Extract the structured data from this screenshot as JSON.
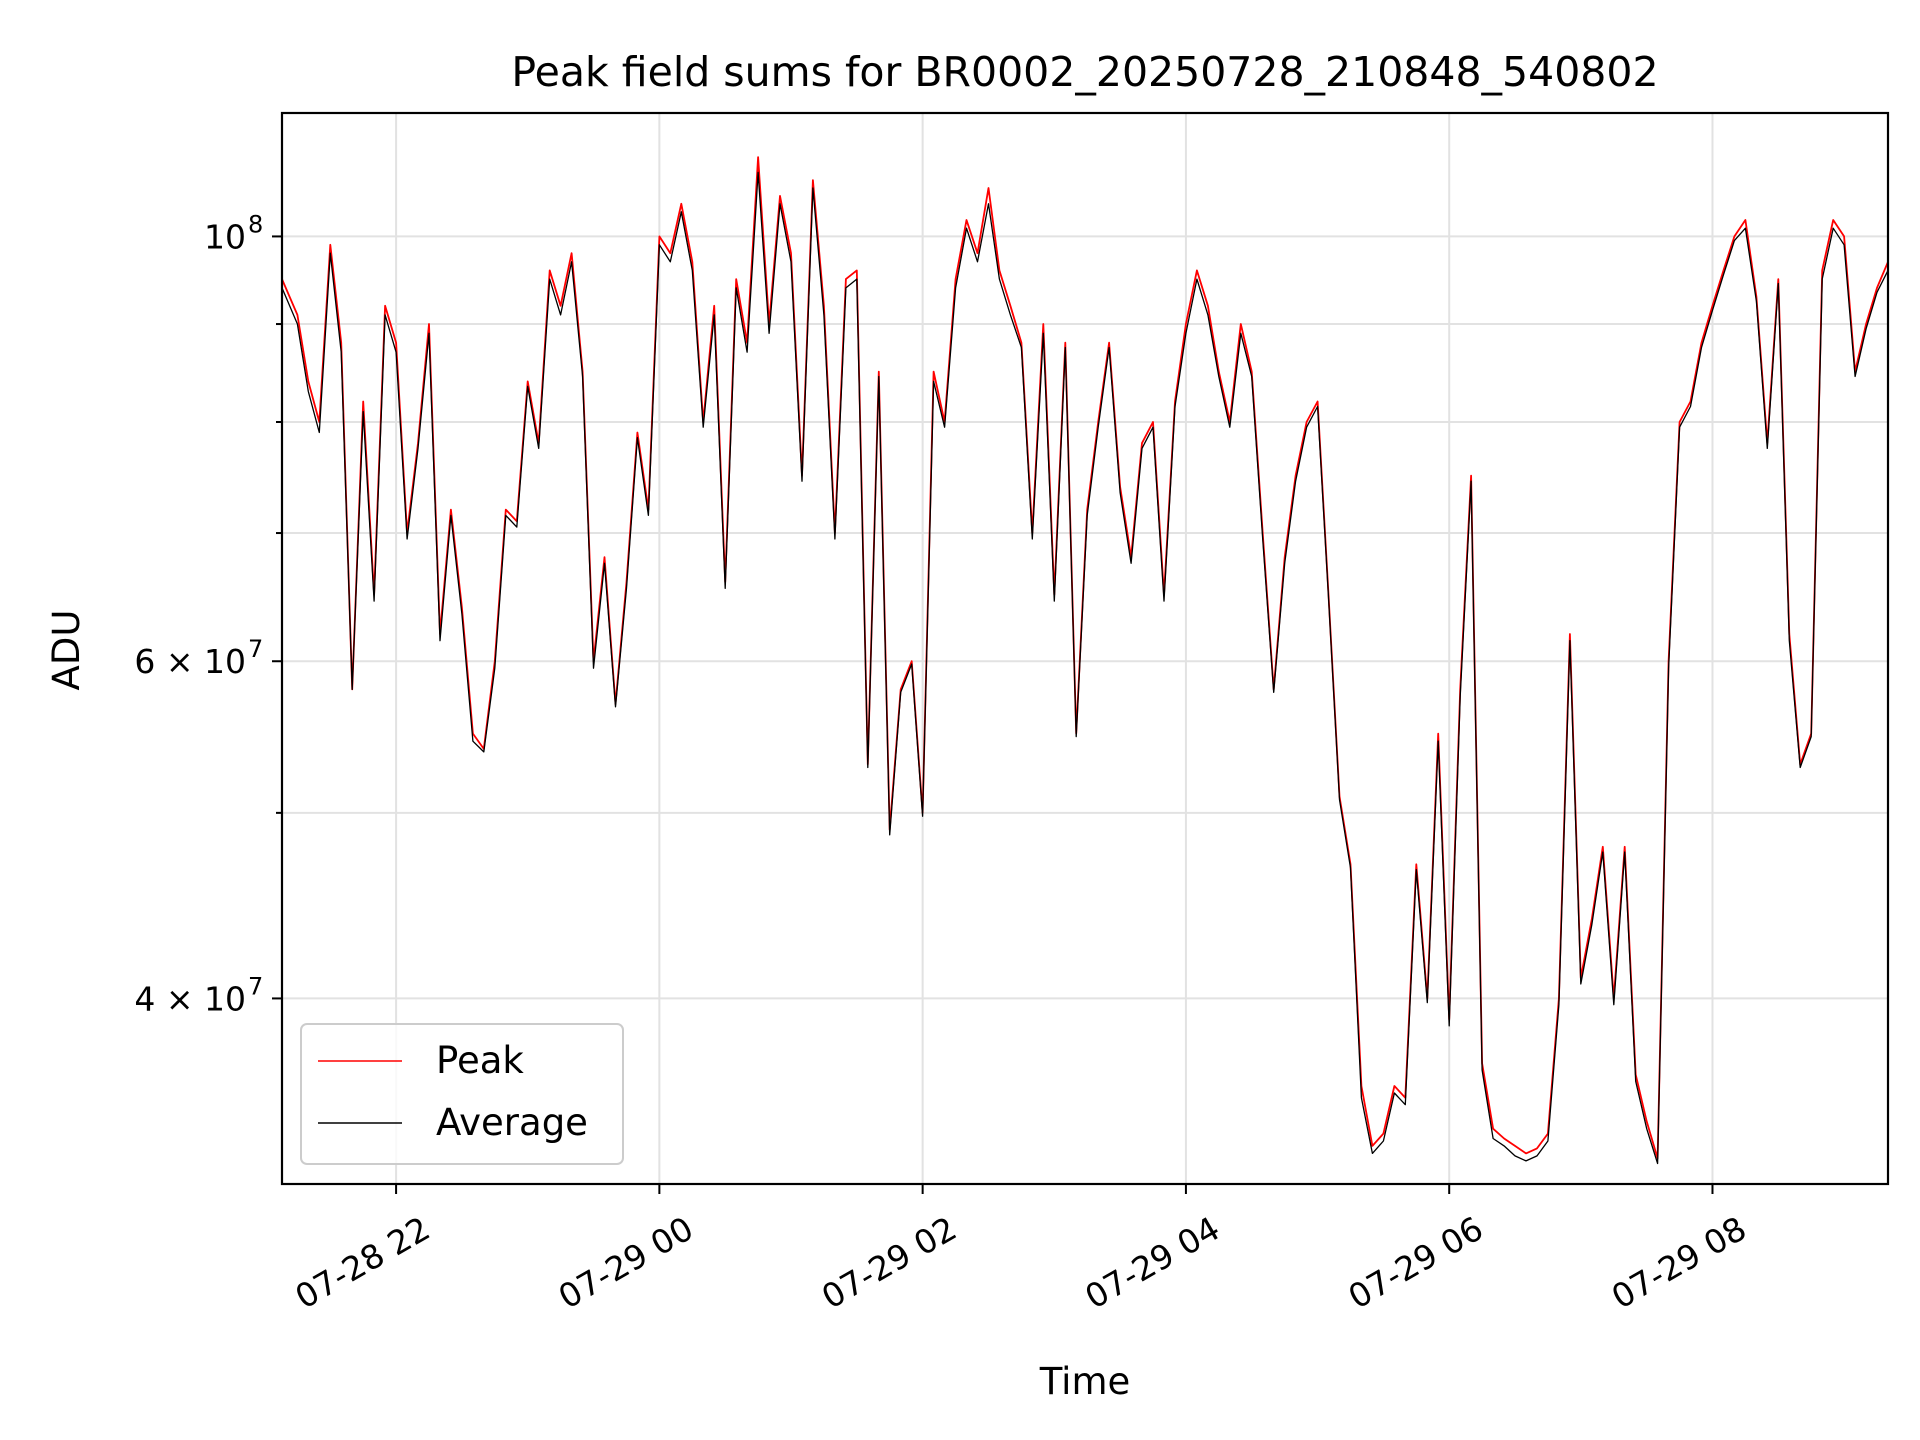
{
  "chart_data": {
    "type": "line",
    "title": "Peak field sums for BR0002_20250728_210848_540802",
    "xlabel": "Time",
    "ylabel": "ADU",
    "x_range": [
      "2025-07-28 21:08",
      "2025-07-29 09:20"
    ],
    "y_scale": "log",
    "ylim": [
      32000000,
      116000000
    ],
    "grid": true,
    "legend_position": "lower-left",
    "x_ticks": [
      {
        "value": "2025-07-28 22:00",
        "label": "07-28 22"
      },
      {
        "value": "2025-07-29 00:00",
        "label": "07-29 00"
      },
      {
        "value": "2025-07-29 02:00",
        "label": "07-29 02"
      },
      {
        "value": "2025-07-29 04:00",
        "label": "07-29 04"
      },
      {
        "value": "2025-07-29 06:00",
        "label": "07-29 06"
      },
      {
        "value": "2025-07-29 08:00",
        "label": "07-29 08"
      }
    ],
    "y_ticks_major": [
      {
        "value": 40000000,
        "label": "4 × 10",
        "exp": "7"
      },
      {
        "value": 60000000,
        "label": "6 × 10",
        "exp": "7"
      },
      {
        "value": 100000000,
        "label": "10",
        "exp": "8"
      }
    ],
    "y_ticks_minor": [
      50000000,
      70000000,
      80000000,
      90000000
    ],
    "series": [
      {
        "name": "Peak",
        "color": "#ff0000",
        "x": [
          "2025-07-28 21:08",
          "2025-07-28 21:15",
          "2025-07-28 21:20",
          "2025-07-28 21:25",
          "2025-07-28 21:30",
          "2025-07-28 21:35",
          "2025-07-28 21:40",
          "2025-07-28 21:45",
          "2025-07-28 21:50",
          "2025-07-28 21:55",
          "2025-07-28 22:00",
          "2025-07-28 22:05",
          "2025-07-28 22:10",
          "2025-07-28 22:15",
          "2025-07-28 22:20",
          "2025-07-28 22:25",
          "2025-07-28 22:30",
          "2025-07-28 22:35",
          "2025-07-28 22:40",
          "2025-07-28 22:45",
          "2025-07-28 22:50",
          "2025-07-28 22:55",
          "2025-07-28 23:00",
          "2025-07-28 23:05",
          "2025-07-28 23:10",
          "2025-07-28 23:15",
          "2025-07-28 23:20",
          "2025-07-28 23:25",
          "2025-07-28 23:30",
          "2025-07-28 23:35",
          "2025-07-28 23:40",
          "2025-07-28 23:45",
          "2025-07-28 23:50",
          "2025-07-28 23:55",
          "2025-07-29 00:00",
          "2025-07-29 00:05",
          "2025-07-29 00:10",
          "2025-07-29 00:15",
          "2025-07-29 00:20",
          "2025-07-29 00:25",
          "2025-07-29 00:30",
          "2025-07-29 00:35",
          "2025-07-29 00:40",
          "2025-07-29 00:45",
          "2025-07-29 00:50",
          "2025-07-29 00:55",
          "2025-07-29 01:00",
          "2025-07-29 01:05",
          "2025-07-29 01:10",
          "2025-07-29 01:15",
          "2025-07-29 01:20",
          "2025-07-29 01:25",
          "2025-07-29 01:30",
          "2025-07-29 01:35",
          "2025-07-29 01:40",
          "2025-07-29 01:45",
          "2025-07-29 01:50",
          "2025-07-29 01:55",
          "2025-07-29 02:00",
          "2025-07-29 02:05",
          "2025-07-29 02:10",
          "2025-07-29 02:15",
          "2025-07-29 02:20",
          "2025-07-29 02:25",
          "2025-07-29 02:30",
          "2025-07-29 02:35",
          "2025-07-29 02:40",
          "2025-07-29 02:45",
          "2025-07-29 02:50",
          "2025-07-29 02:55",
          "2025-07-29 03:00",
          "2025-07-29 03:05",
          "2025-07-29 03:10",
          "2025-07-29 03:15",
          "2025-07-29 03:20",
          "2025-07-29 03:25",
          "2025-07-29 03:30",
          "2025-07-29 03:35",
          "2025-07-29 03:40",
          "2025-07-29 03:45",
          "2025-07-29 03:50",
          "2025-07-29 03:55",
          "2025-07-29 04:00",
          "2025-07-29 04:05",
          "2025-07-29 04:10",
          "2025-07-29 04:15",
          "2025-07-29 04:20",
          "2025-07-29 04:25",
          "2025-07-29 04:30",
          "2025-07-29 04:35",
          "2025-07-29 04:40",
          "2025-07-29 04:45",
          "2025-07-29 04:50",
          "2025-07-29 04:55",
          "2025-07-29 05:00",
          "2025-07-29 05:05",
          "2025-07-29 05:10",
          "2025-07-29 05:15",
          "2025-07-29 05:20",
          "2025-07-29 05:25",
          "2025-07-29 05:30",
          "2025-07-29 05:35",
          "2025-07-29 05:40",
          "2025-07-29 05:45",
          "2025-07-29 05:50",
          "2025-07-29 05:55",
          "2025-07-29 06:00",
          "2025-07-29 06:05",
          "2025-07-29 06:10",
          "2025-07-29 06:15",
          "2025-07-29 06:20",
          "2025-07-29 06:25",
          "2025-07-29 06:30",
          "2025-07-29 06:35",
          "2025-07-29 06:40",
          "2025-07-29 06:45",
          "2025-07-29 06:50",
          "2025-07-29 06:55",
          "2025-07-29 07:00",
          "2025-07-29 07:05",
          "2025-07-29 07:10",
          "2025-07-29 07:15",
          "2025-07-29 07:20",
          "2025-07-29 07:25",
          "2025-07-29 07:30",
          "2025-07-29 07:35",
          "2025-07-29 07:40",
          "2025-07-29 07:45",
          "2025-07-29 07:50",
          "2025-07-29 07:55",
          "2025-07-29 08:00",
          "2025-07-29 08:05",
          "2025-07-29 08:10",
          "2025-07-29 08:15",
          "2025-07-29 08:20",
          "2025-07-29 08:25",
          "2025-07-29 08:30",
          "2025-07-29 08:35",
          "2025-07-29 08:40",
          "2025-07-29 08:45",
          "2025-07-29 08:50",
          "2025-07-29 08:55",
          "2025-07-29 09:00",
          "2025-07-29 09:05",
          "2025-07-29 09:10",
          "2025-07-29 09:15",
          "2025-07-29 09:20"
        ],
        "values": [
          95000000,
          91000000,
          84000000,
          80000000,
          99000000,
          88000000,
          58000000,
          82000000,
          65000000,
          92000000,
          88000000,
          70000000,
          78000000,
          90000000,
          62000000,
          72000000,
          64000000,
          55000000,
          54000000,
          60000000,
          72000000,
          71000000,
          84000000,
          78000000,
          96000000,
          92000000,
          98000000,
          85000000,
          60000000,
          68000000,
          57000000,
          66000000,
          79000000,
          72000000,
          100000000,
          98000000,
          104000000,
          97000000,
          80000000,
          92000000,
          66000000,
          95000000,
          88000000,
          110000000,
          90000000,
          105000000,
          98000000,
          75000000,
          107000000,
          92000000,
          70000000,
          95000000,
          96000000,
          53000000,
          85000000,
          49000000,
          58000000,
          60000000,
          50000000,
          85000000,
          80000000,
          95000000,
          102000000,
          98000000,
          106000000,
          96000000,
          92000000,
          88000000,
          70000000,
          90000000,
          65000000,
          88000000,
          55000000,
          72000000,
          80000000,
          88000000,
          74000000,
          68000000,
          78000000,
          80000000,
          65000000,
          82000000,
          90000000,
          96000000,
          92000000,
          85000000,
          80000000,
          90000000,
          85000000,
          70000000,
          58000000,
          68000000,
          75000000,
          80000000,
          82000000,
          65000000,
          51000000,
          47000000,
          36000000,
          33500000,
          34000000,
          36000000,
          35500000,
          47000000,
          40000000,
          55000000,
          39000000,
          58000000,
          75000000,
          37000000,
          34200000,
          33800000,
          33500000,
          33200000,
          33400000,
          34000000,
          40000000,
          62000000,
          41000000,
          44000000,
          48000000,
          40000000,
          48000000,
          36500000,
          34500000,
          33000000,
          60000000,
          80000000,
          82000000,
          88000000,
          92000000,
          96000000,
          100000000,
          102000000,
          93000000,
          78000000,
          95000000,
          62000000,
          53000000,
          55000000,
          96000000,
          102000000,
          100000000,
          85000000,
          90000000,
          94000000,
          97000000
        ]
      },
      {
        "name": "Average",
        "color": "#000000",
        "x": [
          "2025-07-28 21:08",
          "2025-07-28 21:15",
          "2025-07-28 21:20",
          "2025-07-28 21:25",
          "2025-07-28 21:30",
          "2025-07-28 21:35",
          "2025-07-28 21:40",
          "2025-07-28 21:45",
          "2025-07-28 21:50",
          "2025-07-28 21:55",
          "2025-07-28 22:00",
          "2025-07-28 22:05",
          "2025-07-28 22:10",
          "2025-07-28 22:15",
          "2025-07-28 22:20",
          "2025-07-28 22:25",
          "2025-07-28 22:30",
          "2025-07-28 22:35",
          "2025-07-28 22:40",
          "2025-07-28 22:45",
          "2025-07-28 22:50",
          "2025-07-28 22:55",
          "2025-07-28 23:00",
          "2025-07-28 23:05",
          "2025-07-28 23:10",
          "2025-07-28 23:15",
          "2025-07-28 23:20",
          "2025-07-28 23:25",
          "2025-07-28 23:30",
          "2025-07-28 23:35",
          "2025-07-28 23:40",
          "2025-07-28 23:45",
          "2025-07-28 23:50",
          "2025-07-28 23:55",
          "2025-07-29 00:00",
          "2025-07-29 00:05",
          "2025-07-29 00:10",
          "2025-07-29 00:15",
          "2025-07-29 00:20",
          "2025-07-29 00:25",
          "2025-07-29 00:30",
          "2025-07-29 00:35",
          "2025-07-29 00:40",
          "2025-07-29 00:45",
          "2025-07-29 00:50",
          "2025-07-29 00:55",
          "2025-07-29 01:00",
          "2025-07-29 01:05",
          "2025-07-29 01:10",
          "2025-07-29 01:15",
          "2025-07-29 01:20",
          "2025-07-29 01:25",
          "2025-07-29 01:30",
          "2025-07-29 01:35",
          "2025-07-29 01:40",
          "2025-07-29 01:45",
          "2025-07-29 01:50",
          "2025-07-29 01:55",
          "2025-07-29 02:00",
          "2025-07-29 02:05",
          "2025-07-29 02:10",
          "2025-07-29 02:15",
          "2025-07-29 02:20",
          "2025-07-29 02:25",
          "2025-07-29 02:30",
          "2025-07-29 02:35",
          "2025-07-29 02:40",
          "2025-07-29 02:45",
          "2025-07-29 02:50",
          "2025-07-29 02:55",
          "2025-07-29 03:00",
          "2025-07-29 03:05",
          "2025-07-29 03:10",
          "2025-07-29 03:15",
          "2025-07-29 03:20",
          "2025-07-29 03:25",
          "2025-07-29 03:30",
          "2025-07-29 03:35",
          "2025-07-29 03:40",
          "2025-07-29 03:45",
          "2025-07-29 03:50",
          "2025-07-29 03:55",
          "2025-07-29 04:00",
          "2025-07-29 04:05",
          "2025-07-29 04:10",
          "2025-07-29 04:15",
          "2025-07-29 04:20",
          "2025-07-29 04:25",
          "2025-07-29 04:30",
          "2025-07-29 04:35",
          "2025-07-29 04:40",
          "2025-07-29 04:45",
          "2025-07-29 04:50",
          "2025-07-29 04:55",
          "2025-07-29 05:00",
          "2025-07-29 05:05",
          "2025-07-29 05:10",
          "2025-07-29 05:15",
          "2025-07-29 05:20",
          "2025-07-29 05:25",
          "2025-07-29 05:30",
          "2025-07-29 05:35",
          "2025-07-29 05:40",
          "2025-07-29 05:45",
          "2025-07-29 05:50",
          "2025-07-29 05:55",
          "2025-07-29 06:00",
          "2025-07-29 06:05",
          "2025-07-29 06:10",
          "2025-07-29 06:15",
          "2025-07-29 06:20",
          "2025-07-29 06:25",
          "2025-07-29 06:30",
          "2025-07-29 06:35",
          "2025-07-29 06:40",
          "2025-07-29 06:45",
          "2025-07-29 06:50",
          "2025-07-29 06:55",
          "2025-07-29 07:00",
          "2025-07-29 07:05",
          "2025-07-29 07:10",
          "2025-07-29 07:15",
          "2025-07-29 07:20",
          "2025-07-29 07:25",
          "2025-07-29 07:30",
          "2025-07-29 07:35",
          "2025-07-29 07:40",
          "2025-07-29 07:45",
          "2025-07-29 07:50",
          "2025-07-29 07:55",
          "2025-07-29 08:00",
          "2025-07-29 08:05",
          "2025-07-29 08:10",
          "2025-07-29 08:15",
          "2025-07-29 08:20",
          "2025-07-29 08:25",
          "2025-07-29 08:30",
          "2025-07-29 08:35",
          "2025-07-29 08:40",
          "2025-07-29 08:45",
          "2025-07-29 08:50",
          "2025-07-29 08:55",
          "2025-07-29 09:00",
          "2025-07-29 09:05",
          "2025-07-29 09:10",
          "2025-07-29 09:15",
          "2025-07-29 09:20"
        ],
        "values": [
          94000000,
          90000000,
          83000000,
          79000000,
          98000000,
          87000000,
          58000000,
          81000000,
          64500000,
          91000000,
          87000000,
          69500000,
          77500000,
          89000000,
          61500000,
          71500000,
          63500000,
          54500000,
          53800000,
          59500000,
          71500000,
          70500000,
          83500000,
          77500000,
          95000000,
          91000000,
          97000000,
          84500000,
          59500000,
          67500000,
          56800000,
          65500000,
          78500000,
          71500000,
          99000000,
          97000000,
          103000000,
          96000000,
          79500000,
          91000000,
          65500000,
          94000000,
          87000000,
          108000000,
          89000000,
          104000000,
          97000000,
          74500000,
          106000000,
          91000000,
          69500000,
          94000000,
          95000000,
          52800000,
          84500000,
          48700000,
          57800000,
          59800000,
          49800000,
          84000000,
          79500000,
          94000000,
          101000000,
          97000000,
          104000000,
          95000000,
          91000000,
          87500000,
          69500000,
          89000000,
          64500000,
          87500000,
          54800000,
          71500000,
          79500000,
          87500000,
          73500000,
          67500000,
          77500000,
          79500000,
          64500000,
          81500000,
          89000000,
          95000000,
          91000000,
          84500000,
          79500000,
          89000000,
          84500000,
          69500000,
          57800000,
          67500000,
          74500000,
          79500000,
          81500000,
          64800000,
          50800000,
          46800000,
          35500000,
          33200000,
          33700000,
          35700000,
          35200000,
          46700000,
          39800000,
          54500000,
          38700000,
          57500000,
          74500000,
          36700000,
          33800000,
          33500000,
          33100000,
          32900000,
          33100000,
          33700000,
          39700000,
          61500000,
          40700000,
          43700000,
          47700000,
          39700000,
          47700000,
          36200000,
          34200000,
          32800000,
          59500000,
          79500000,
          81500000,
          87500000,
          91500000,
          95500000,
          99500000,
          101000000,
          92500000,
          77500000,
          94500000,
          61500000,
          52800000,
          54800000,
          95000000,
          101000000,
          99000000,
          84500000,
          89500000,
          93500000,
          96000000
        ]
      }
    ]
  }
}
